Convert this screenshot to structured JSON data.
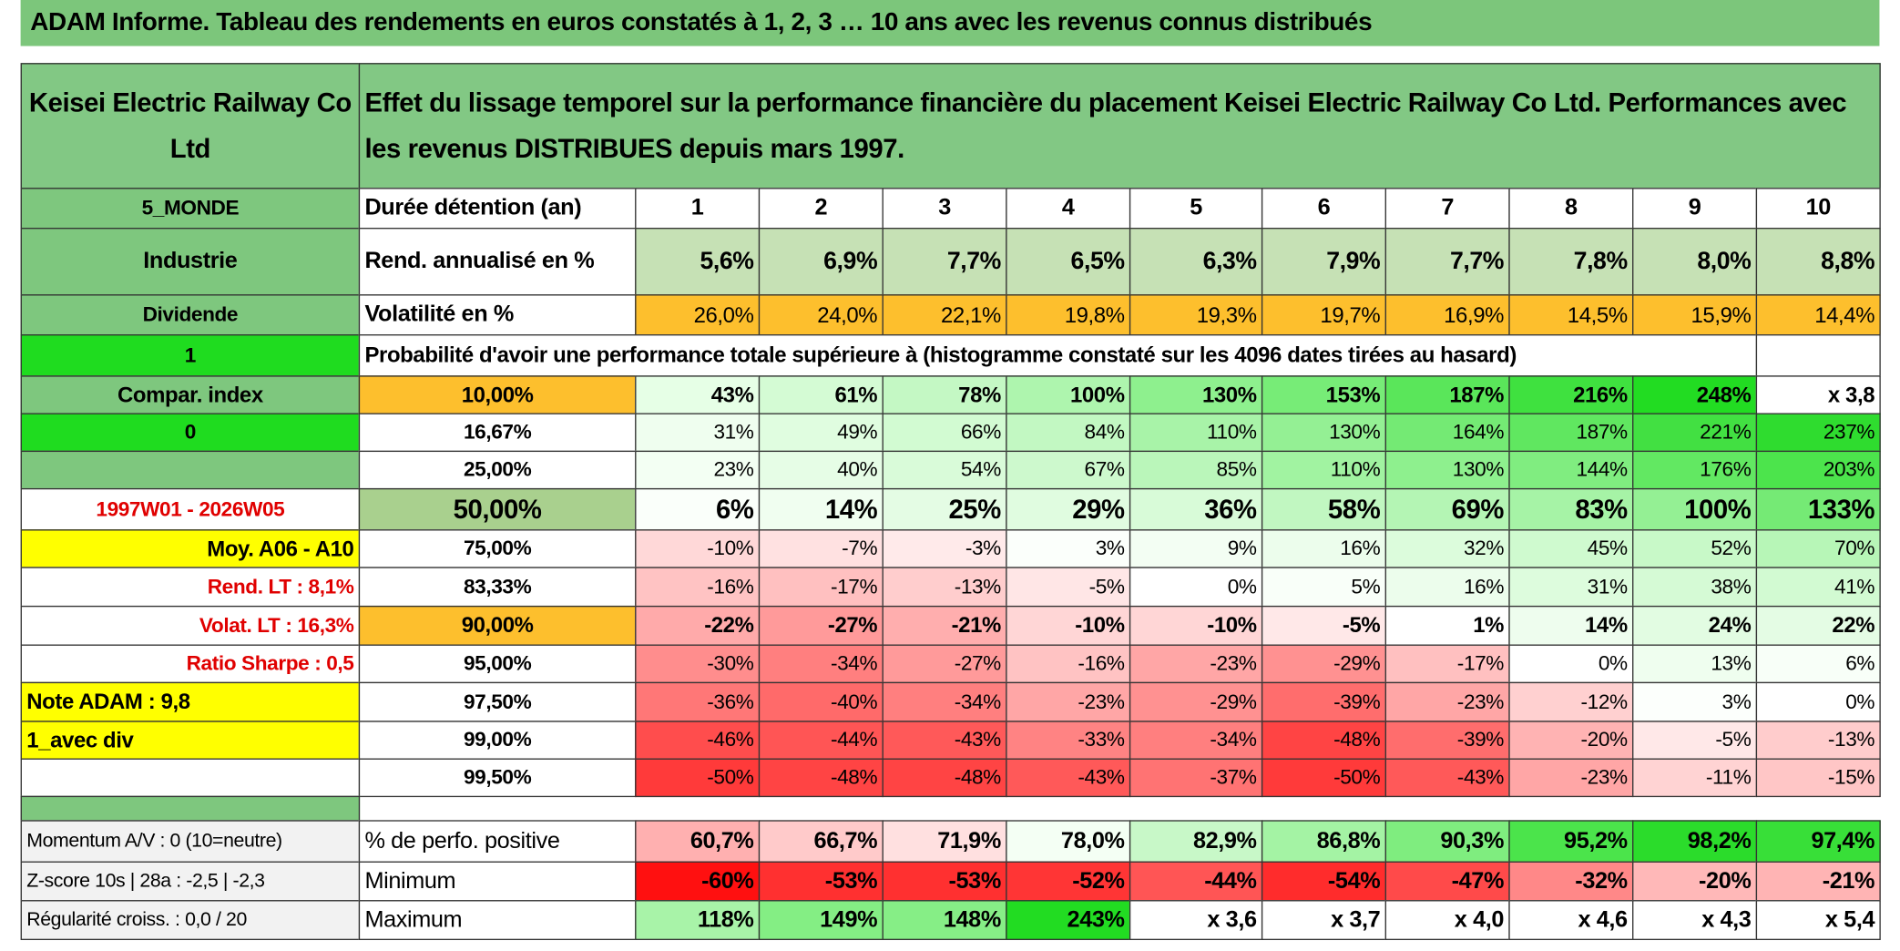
{
  "title": "ADAM Informe. Tableau des rendements en euros constatés à 1, 2, 3 … 10 ans avec les revenus connus distribués",
  "title_fill": "#7cc67b",
  "rows": [
    {
      "label": "Keisei Electric Railway Co Ltd",
      "heading": "Effet du lissage temporel sur la performance financière du placement Keisei Electric Railway Co Ltd. Performances avec les revenus DISTRIBUES depuis mars 1997.",
      "label_fill": "#82c884",
      "heading_fill": "#82c884"
    },
    {
      "label": "5_MONDE",
      "heading": "Durée détention (an)",
      "label_fill": "#7ec77e",
      "values": [
        "1",
        "2",
        "3",
        "4",
        "5",
        "6",
        "7",
        "8",
        "9",
        "10"
      ]
    },
    {
      "label": "Industrie",
      "heading": "Rend. annualisé en %",
      "label_fill": "#7ec77e",
      "values": [
        "5,6%",
        "6,9%",
        "7,7%",
        "6,5%",
        "6,3%",
        "7,9%",
        "7,7%",
        "7,8%",
        "8,0%",
        "8,8%"
      ],
      "fills": [
        "#c6e1b5",
        "#c6e1b5",
        "#c6e1b5",
        "#c6e1b5",
        "#c6e1b5",
        "#c6e1b5",
        "#c6e1b5",
        "#c6e1b5",
        "#c6e1b5",
        "#c6e1b5"
      ]
    },
    {
      "label": "Dividende",
      "heading": "Volatilité en %",
      "label_fill": "#7ec77e",
      "values": [
        "26,0%",
        "24,0%",
        "22,1%",
        "19,8%",
        "19,3%",
        "19,7%",
        "16,9%",
        "14,5%",
        "15,9%",
        "14,4%"
      ],
      "fills": [
        "#fdbf2d",
        "#fdbf2d",
        "#fdbf2d",
        "#fdbf2d",
        "#fdbf2d",
        "#fdbf2d",
        "#fdbf2d",
        "#fdbf2d",
        "#fdbf2d",
        "#fdbf2d"
      ]
    },
    {
      "label": "1",
      "heading": "Probabilité d'avoir une performance totale supérieure à (histogramme constaté sur les 4096 dates tirées au hasard)",
      "label_fill": "#1fdc1f"
    },
    {
      "label": "Compar. index",
      "heading": "10,00%",
      "label_fill": "#7ec77e",
      "heading_fill": "#fdbf2d",
      "values": [
        "43%",
        "61%",
        "78%",
        "100%",
        "130%",
        "153%",
        "187%",
        "216%",
        "248%",
        "x 3,8"
      ],
      "fills": [
        "#e6ffe6",
        "#d4fbd4",
        "#c4f8c4",
        "#aef5ae",
        "#8ef08e",
        "#77ec77",
        "#5ae65a",
        "#3fe13f",
        "#22dc22",
        "#ffffff"
      ]
    },
    {
      "label": "0",
      "heading": "16,67%",
      "label_fill": "#1fdc1f",
      "values": [
        "31%",
        "49%",
        "66%",
        "84%",
        "110%",
        "130%",
        "164%",
        "187%",
        "221%",
        "237%"
      ],
      "fills": [
        "#effeef",
        "#e0fde0",
        "#d2fbd2",
        "#c2f8c2",
        "#a8f3a8",
        "#94f094",
        "#74ea74",
        "#60e760",
        "#42e042",
        "#2fdc2f"
      ]
    },
    {
      "heading": "25,00%",
      "label_fill": "#7ec77e",
      "values": [
        "23%",
        "40%",
        "54%",
        "67%",
        "85%",
        "110%",
        "130%",
        "144%",
        "176%",
        "203%"
      ],
      "fills": [
        "#f3fff3",
        "#e6fde6",
        "#d9fbd9",
        "#cdf9cd",
        "#baf6ba",
        "#a1f3a1",
        "#8ef08e",
        "#80ed80",
        "#62e862",
        "#4ce44c"
      ]
    },
    {
      "label": "1997W01 - 2026W05",
      "heading": "50,00%",
      "heading_fill": "#a9d08e",
      "values": [
        "6%",
        "14%",
        "25%",
        "29%",
        "36%",
        "58%",
        "69%",
        "83%",
        "100%",
        "133%"
      ],
      "fills": [
        "#fafffa",
        "#f0fef0",
        "#e4fce4",
        "#e0fce0",
        "#d8fbd8",
        "#c1f7c1",
        "#b4f5b4",
        "#a6f3a6",
        "#94f094",
        "#75ea75"
      ]
    },
    {
      "label": "Moy. A06 - A10",
      "heading": "75,00%",
      "label_fill": "#ffff00",
      "values": [
        "-10%",
        "-7%",
        "-3%",
        "3%",
        "9%",
        "16%",
        "32%",
        "45%",
        "52%",
        "70%"
      ],
      "fills": [
        "#ffd8d8",
        "#ffe1e1",
        "#ffeaea",
        "#fbfffb",
        "#f3fef3",
        "#ecfdec",
        "#dcfcdc",
        "#cffacf",
        "#c8f9c8",
        "#b7f6b7"
      ]
    },
    {
      "label": "Rend. LT :   8,1%",
      "heading": "83,33%",
      "values": [
        "-16%",
        "-17%",
        "-13%",
        "-5%",
        "0%",
        "5%",
        "16%",
        "31%",
        "38%",
        "41%"
      ],
      "fills": [
        "#ffc3c3",
        "#ffc0c0",
        "#ffcdcd",
        "#ffe6e6",
        "#ffffff",
        "#f9fff9",
        "#ecfdec",
        "#ddfcdd",
        "#d5fad5",
        "#d2fad2"
      ]
    },
    {
      "label": "Volat. LT :   16,3%",
      "heading": "90,00%",
      "heading_fill": "#fdbf2d",
      "values": [
        "-22%",
        "-27%",
        "-21%",
        "-10%",
        "-10%",
        "-5%",
        "1%",
        "14%",
        "24%",
        "22%"
      ],
      "fills": [
        "#ffaaaa",
        "#ff9a9a",
        "#ffaeae",
        "#ffd6d6",
        "#ffd6d6",
        "#ffe8e8",
        "#ffffff",
        "#eefdee",
        "#e2fce2",
        "#e4fce4"
      ]
    },
    {
      "label": "Ratio Sharpe :    0,5",
      "heading": "95,00%",
      "values": [
        "-30%",
        "-34%",
        "-27%",
        "-16%",
        "-23%",
        "-29%",
        "-17%",
        "0%",
        "13%",
        "6%"
      ],
      "fills": [
        "#ff8d8d",
        "#ff7f7f",
        "#ff9a9a",
        "#ffc3c3",
        "#ffa6a6",
        "#ff9191",
        "#ffc0c0",
        "#ffffff",
        "#effeef",
        "#f8fff8"
      ]
    },
    {
      "label": "Note ADAM : 9,8",
      "heading": "97,50%",
      "label_fill": "#ffff00",
      "values": [
        "-36%",
        "-40%",
        "-34%",
        "-23%",
        "-29%",
        "-39%",
        "-23%",
        "-12%",
        "3%",
        "0%"
      ],
      "fills": [
        "#ff7777",
        "#ff6a6a",
        "#ff7f7f",
        "#ffa6a6",
        "#ff9191",
        "#ff6d6d",
        "#ffa6a6",
        "#ffd0d0",
        "#fcfffc",
        "#ffffff"
      ]
    },
    {
      "label": "1_avec div",
      "heading": "99,00%",
      "label_fill": "#ffff00",
      "values": [
        "-46%",
        "-44%",
        "-43%",
        "-33%",
        "-34%",
        "-48%",
        "-39%",
        "-20%",
        "-5%",
        "-13%"
      ],
      "fills": [
        "#ff4d4d",
        "#ff5555",
        "#ff5959",
        "#ff8383",
        "#ff7f7f",
        "#ff4444",
        "#ff6d6d",
        "#ffb3b3",
        "#ffe8e8",
        "#ffcccc"
      ]
    },
    {
      "heading": "99,50%",
      "values": [
        "-50%",
        "-48%",
        "-48%",
        "-43%",
        "-37%",
        "-50%",
        "-43%",
        "-23%",
        "-11%",
        "-15%"
      ],
      "fills": [
        "#ff3a3a",
        "#ff4444",
        "#ff4444",
        "#ff5959",
        "#ff7373",
        "#ff3a3a",
        "#ff5959",
        "#ffa6a6",
        "#ffd3d3",
        "#ffc6c6"
      ]
    },
    {
      "label_fill": "#7ec77e"
    },
    {
      "label": "Momentum A/V : 0 (10=neutre)",
      "heading": "% de perfo. positive",
      "label_fill": "#f2f2f2",
      "values": [
        "60,7%",
        "66,7%",
        "71,9%",
        "78,0%",
        "82,9%",
        "86,8%",
        "90,3%",
        "95,2%",
        "98,2%",
        "97,4%"
      ],
      "fills": [
        "#ffb0b0",
        "#ffcaca",
        "#ffe0e0",
        "#f4fff4",
        "#c8f8c8",
        "#a4f3a4",
        "#7fed7f",
        "#4be44b",
        "#2bdc2b",
        "#38df38"
      ]
    },
    {
      "label": "Z-score 10s | 28a : -2,5 | -2,3",
      "heading": "Minimum",
      "label_fill": "#f2f2f2",
      "values": [
        "-60%",
        "-53%",
        "-53%",
        "-52%",
        "-44%",
        "-54%",
        "-47%",
        "-32%",
        "-20%",
        "-21%"
      ],
      "fills": [
        "#ff1010",
        "#ff3030",
        "#ff3030",
        "#ff3535",
        "#ff5555",
        "#ff2c2c",
        "#ff4a4a",
        "#ff8888",
        "#ffb8b8",
        "#ffb4b4"
      ]
    },
    {
      "label": "Régularité croiss. : 0,0 / 20",
      "heading": "Maximum",
      "label_fill": "#f2f2f2",
      "values": [
        "118%",
        "149%",
        "148%",
        "243%",
        "x 3,6",
        "x 3,7",
        "x 4,0",
        "x 4,6",
        "x 4,3",
        "x 5,4"
      ],
      "fills": [
        "#a8f3a8",
        "#84ee84",
        "#86ee86",
        "#22dc22",
        "#ffffff",
        "#ffffff",
        "#ffffff",
        "#ffffff",
        "#ffffff",
        "#ffffff"
      ]
    }
  ]
}
